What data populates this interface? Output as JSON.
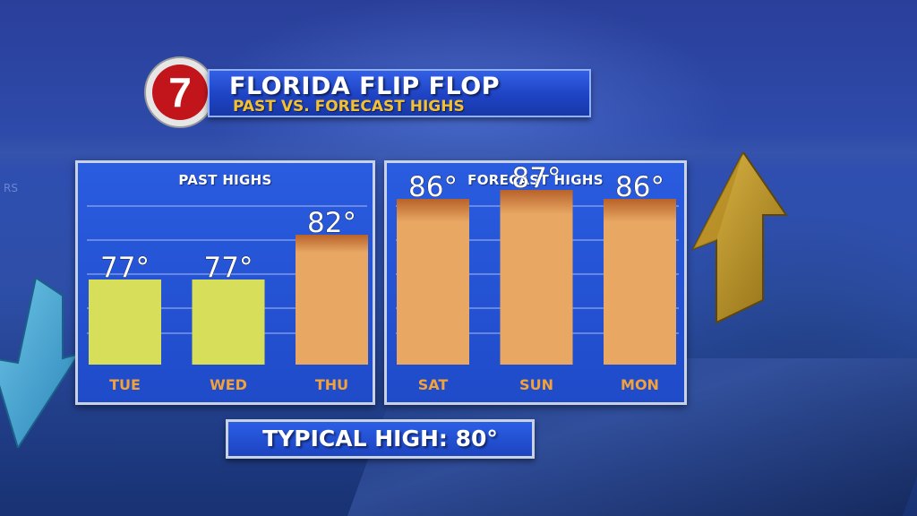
{
  "title": "FLORIDA FLIP FLOP",
  "subtitle": "PAST VS. FORECAST HIGHS",
  "logo_text": "7",
  "typical_high": "TYPICAL HIGH: 80°",
  "colors": {
    "past_bar_cool": "#d6de5a",
    "past_bar_warm": "#e8a864",
    "forecast_bar": "#e8a864",
    "day_label": "#f2a23a",
    "panel_bg": "#2451d4",
    "logo_red": "#c2151b"
  },
  "chart_data": [
    {
      "type": "bar",
      "title": "PAST HIGHS",
      "categories": [
        "TUE",
        "WED",
        "THU"
      ],
      "values": [
        77,
        77,
        82
      ],
      "value_labels": [
        "77°",
        "77°",
        "82°"
      ],
      "bar_colors": [
        "#d6de5a",
        "#d6de5a",
        "#e8a864"
      ],
      "grid": true
    },
    {
      "type": "bar",
      "title": "FORECAST HIGHS",
      "categories": [
        "SAT",
        "SUN",
        "MON"
      ],
      "values": [
        86,
        87,
        86
      ],
      "value_labels": [
        "86°",
        "87°",
        "86°"
      ],
      "bar_colors": [
        "#e8a864",
        "#e8a864",
        "#e8a864"
      ],
      "grid": true
    }
  ]
}
